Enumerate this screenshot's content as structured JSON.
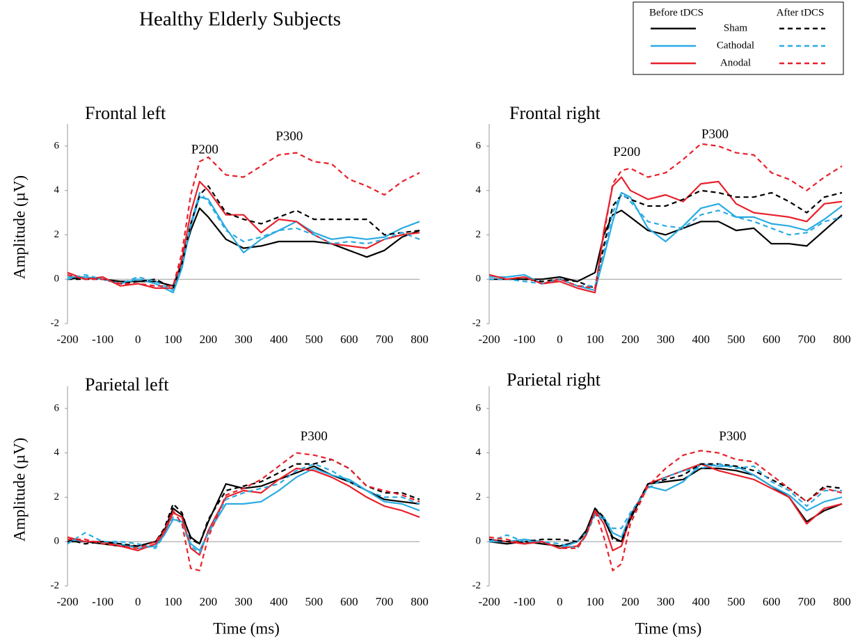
{
  "title": "Healthy Elderly Subjects",
  "chart_data": [
    {
      "type": "line",
      "title": "Frontal left",
      "ylabel": "Amplitude (µV)",
      "x": [
        -200,
        -150,
        -100,
        -50,
        0,
        50,
        100,
        125,
        150,
        175,
        200,
        250,
        300,
        350,
        400,
        450,
        500,
        550,
        600,
        650,
        700,
        750,
        800
      ],
      "xlim": [
        -200,
        800
      ],
      "ylim": [
        -2,
        7
      ],
      "xticks": [
        -200,
        -100,
        0,
        100,
        200,
        300,
        400,
        500,
        600,
        700,
        800
      ],
      "yticks": [
        -2,
        0,
        2,
        4,
        6
      ],
      "annotations": [
        {
          "text": "P200",
          "x": 190,
          "y": 5.8
        },
        {
          "text": "P300",
          "x": 430,
          "y": 6.4
        }
      ],
      "series": [
        {
          "name": "Sham",
          "phase": "Before tDCS",
          "color": "#000000",
          "dashed": false,
          "values": [
            0,
            0.1,
            0,
            -0.1,
            -0.1,
            -0.1,
            -0.3,
            0.8,
            2.2,
            3.2,
            2.8,
            1.8,
            1.4,
            1.5,
            1.7,
            1.7,
            1.7,
            1.6,
            1.3,
            1.0,
            1.3,
            1.9,
            2.2
          ]
        },
        {
          "name": "Cathodal",
          "phase": "Before tDCS",
          "color": "#29abe2",
          "dashed": false,
          "values": [
            0.1,
            0.1,
            0,
            -0.2,
            0,
            -0.2,
            -0.6,
            0.5,
            2.4,
            3.7,
            3.6,
            2.3,
            1.2,
            1.8,
            2.2,
            2.6,
            2.1,
            1.8,
            1.9,
            1.8,
            1.9,
            2.3,
            2.6
          ]
        },
        {
          "name": "Anodal",
          "phase": "Before tDCS",
          "color": "#e8202a",
          "dashed": false,
          "values": [
            0.3,
            0,
            0.1,
            -0.3,
            -0.2,
            -0.4,
            -0.4,
            0.9,
            3.0,
            4.4,
            4.0,
            2.9,
            2.9,
            2.1,
            2.7,
            2.6,
            2.0,
            1.6,
            1.5,
            1.4,
            1.8,
            2.0,
            2.1
          ]
        },
        {
          "name": "Sham",
          "phase": "After tDCS",
          "color": "#000000",
          "dashed": true,
          "values": [
            0,
            0,
            0,
            -0.2,
            -0.1,
            0,
            -0.4,
            0.7,
            2.5,
            3.8,
            4.2,
            3.0,
            2.7,
            2.5,
            2.8,
            3.1,
            2.7,
            2.7,
            2.7,
            2.7,
            2.0,
            2.1,
            2.2
          ]
        },
        {
          "name": "Cathodal",
          "phase": "After tDCS",
          "color": "#29abe2",
          "dashed": true,
          "values": [
            0,
            0.2,
            0,
            -0.2,
            0.1,
            -0.1,
            -0.5,
            0.6,
            2.5,
            3.9,
            3.5,
            2.2,
            1.7,
            1.9,
            2.2,
            2.3,
            2.0,
            1.6,
            1.7,
            1.6,
            1.8,
            2.1,
            1.8
          ]
        },
        {
          "name": "Anodal",
          "phase": "After tDCS",
          "color": "#e8202a",
          "dashed": true,
          "values": [
            0.2,
            0,
            0,
            -0.2,
            -0.2,
            -0.3,
            -0.3,
            1.2,
            3.8,
            5.3,
            5.5,
            4.7,
            4.6,
            5.1,
            5.6,
            5.7,
            5.3,
            5.2,
            4.5,
            4.2,
            3.8,
            4.4,
            4.8
          ]
        }
      ]
    },
    {
      "type": "line",
      "title": "Frontal right",
      "x": [
        -200,
        -150,
        -100,
        -50,
        0,
        50,
        100,
        125,
        150,
        175,
        200,
        250,
        300,
        350,
        400,
        450,
        500,
        550,
        600,
        650,
        700,
        750,
        800
      ],
      "xlim": [
        -200,
        800
      ],
      "ylim": [
        -2,
        7
      ],
      "xticks": [
        -200,
        -100,
        0,
        100,
        200,
        300,
        400,
        500,
        600,
        700,
        800
      ],
      "yticks": [
        -2,
        0,
        2,
        4,
        6
      ],
      "annotations": [
        {
          "text": "P200",
          "x": 190,
          "y": 5.7
        },
        {
          "text": "P300",
          "x": 440,
          "y": 6.5
        }
      ],
      "series": [
        {
          "name": "Sham",
          "phase": "Before tDCS",
          "color": "#000000",
          "dashed": false,
          "values": [
            0,
            0,
            0,
            0,
            0.1,
            -0.1,
            0.3,
            2.0,
            2.9,
            3.1,
            2.8,
            2.2,
            2.0,
            2.3,
            2.6,
            2.6,
            2.2,
            2.3,
            1.6,
            1.6,
            1.5,
            2.2,
            2.9
          ]
        },
        {
          "name": "Cathodal",
          "phase": "Before tDCS",
          "color": "#29abe2",
          "dashed": false,
          "values": [
            0.1,
            0.1,
            0.2,
            -0.2,
            0,
            -0.3,
            -0.5,
            1.0,
            2.6,
            3.9,
            3.7,
            2.3,
            1.7,
            2.4,
            3.2,
            3.4,
            2.8,
            2.8,
            2.5,
            2.4,
            2.2,
            2.7,
            3.3
          ]
        },
        {
          "name": "Anodal",
          "phase": "Before tDCS",
          "color": "#e8202a",
          "dashed": false,
          "values": [
            0.2,
            0,
            0.1,
            -0.2,
            -0.1,
            -0.4,
            -0.6,
            2.2,
            4.2,
            4.6,
            4.0,
            3.6,
            3.8,
            3.5,
            4.3,
            4.4,
            3.4,
            3.0,
            2.9,
            2.8,
            2.6,
            3.4,
            3.5
          ]
        },
        {
          "name": "Sham",
          "phase": "After tDCS",
          "color": "#000000",
          "dashed": true,
          "values": [
            0,
            0,
            0,
            -0.1,
            0,
            -0.1,
            -0.4,
            1.5,
            3.3,
            3.8,
            3.6,
            3.3,
            3.3,
            3.6,
            4.0,
            3.9,
            3.7,
            3.7,
            3.9,
            3.5,
            3.0,
            3.7,
            3.9
          ]
        },
        {
          "name": "Cathodal",
          "phase": "After tDCS",
          "color": "#29abe2",
          "dashed": true,
          "values": [
            0,
            0,
            -0.1,
            -0.2,
            0,
            -0.3,
            -0.3,
            1.2,
            3.0,
            3.9,
            3.5,
            2.6,
            2.4,
            2.3,
            2.9,
            3.1,
            2.8,
            2.6,
            2.3,
            2.0,
            2.1,
            2.6,
            2.8
          ]
        },
        {
          "name": "Anodal",
          "phase": "After tDCS",
          "color": "#e8202a",
          "dashed": true,
          "values": [
            0.2,
            0,
            0.1,
            -0.2,
            0,
            -0.3,
            -0.4,
            2.0,
            4.3,
            4.9,
            5.0,
            4.6,
            4.8,
            5.4,
            6.1,
            6.0,
            5.7,
            5.6,
            4.8,
            4.5,
            4.0,
            4.6,
            5.1
          ]
        }
      ]
    },
    {
      "type": "line",
      "title": "Parietal left",
      "ylabel": "Amplitude (µV)",
      "xlabel": "Time (ms)",
      "x": [
        -200,
        -150,
        -100,
        -50,
        0,
        50,
        75,
        100,
        125,
        150,
        175,
        200,
        250,
        300,
        350,
        400,
        450,
        500,
        550,
        600,
        650,
        700,
        750,
        800
      ],
      "xlim": [
        -200,
        800
      ],
      "ylim": [
        -2,
        7
      ],
      "xticks": [
        -200,
        -100,
        0,
        100,
        200,
        300,
        400,
        500,
        600,
        700,
        800
      ],
      "yticks": [
        -2,
        0,
        2,
        4,
        6
      ],
      "annotations": [
        {
          "text": "P300",
          "x": 500,
          "y": 4.7
        }
      ],
      "series": [
        {
          "name": "Sham",
          "phase": "Before tDCS",
          "color": "#000000",
          "dashed": false,
          "values": [
            0,
            0,
            -0.1,
            -0.2,
            -0.2,
            0,
            0.5,
            1.5,
            1.2,
            0.2,
            -0.1,
            0.9,
            2.6,
            2.4,
            2.5,
            2.8,
            3.1,
            3.4,
            3.0,
            2.7,
            2.3,
            1.9,
            1.8,
            1.7
          ]
        },
        {
          "name": "Cathodal",
          "phase": "Before tDCS",
          "color": "#29abe2",
          "dashed": false,
          "values": [
            0.1,
            0,
            0,
            -0.1,
            -0.3,
            -0.2,
            0.3,
            1.0,
            0.9,
            -0.1,
            -0.4,
            0.4,
            1.7,
            1.7,
            1.8,
            2.3,
            2.9,
            3.3,
            3.0,
            2.8,
            2.3,
            1.8,
            1.7,
            1.4
          ]
        },
        {
          "name": "Anodal",
          "phase": "Before tDCS",
          "color": "#e8202a",
          "dashed": false,
          "values": [
            0.2,
            0,
            0,
            -0.2,
            -0.4,
            -0.1,
            0.4,
            1.3,
            1.1,
            -0.3,
            -0.6,
            0.5,
            2.0,
            2.3,
            2.2,
            2.8,
            3.3,
            3.2,
            2.9,
            2.5,
            2.0,
            1.6,
            1.4,
            1.1
          ]
        },
        {
          "name": "Sham",
          "phase": "After tDCS",
          "color": "#000000",
          "dashed": true,
          "values": [
            0.1,
            -0.1,
            0,
            -0.1,
            -0.2,
            0,
            0.6,
            1.7,
            1.3,
            0.1,
            -0.1,
            1.0,
            2.3,
            2.5,
            2.7,
            3.1,
            3.5,
            3.5,
            3.7,
            3.3,
            2.5,
            2.2,
            2.2,
            1.9
          ]
        },
        {
          "name": "Cathodal",
          "phase": "After tDCS",
          "color": "#29abe2",
          "dashed": true,
          "values": [
            -0.1,
            0.4,
            0,
            0,
            -0.1,
            -0.3,
            0.3,
            1.1,
            0.8,
            -0.2,
            -0.5,
            0.4,
            1.9,
            2.2,
            2.4,
            2.6,
            3.2,
            3.5,
            3.2,
            2.7,
            2.3,
            2.0,
            2.0,
            1.7
          ]
        },
        {
          "name": "Anodal",
          "phase": "After tDCS",
          "color": "#e8202a",
          "dashed": true,
          "values": [
            0.1,
            0.1,
            -0.1,
            -0.2,
            -0.3,
            0,
            0.5,
            1.4,
            0.8,
            -1.2,
            -1.3,
            0.2,
            2.1,
            2.4,
            2.8,
            3.4,
            4.0,
            3.9,
            3.7,
            3.3,
            2.5,
            2.3,
            2.1,
            1.8
          ]
        }
      ]
    },
    {
      "type": "line",
      "title": "Parietal right",
      "xlabel": "Time (ms)",
      "x": [
        -200,
        -150,
        -100,
        -50,
        0,
        50,
        75,
        100,
        125,
        150,
        175,
        200,
        250,
        300,
        350,
        400,
        450,
        500,
        550,
        600,
        650,
        700,
        750,
        800
      ],
      "xlim": [
        -200,
        800
      ],
      "ylim": [
        -2,
        7
      ],
      "xticks": [
        -200,
        -100,
        0,
        100,
        200,
        300,
        400,
        500,
        600,
        700,
        800
      ],
      "yticks": [
        -2,
        0,
        2,
        4,
        6
      ],
      "annotations": [
        {
          "text": "P300",
          "x": 490,
          "y": 4.7
        }
      ],
      "series": [
        {
          "name": "Sham",
          "phase": "Before tDCS",
          "color": "#000000",
          "dashed": false,
          "values": [
            0,
            -0.1,
            0,
            -0.1,
            -0.2,
            0,
            0.5,
            1.5,
            1.0,
            0.2,
            0,
            1.0,
            2.6,
            2.7,
            2.8,
            3.3,
            3.3,
            3.2,
            3.0,
            2.5,
            2.0,
            0.9,
            1.4,
            1.7
          ]
        },
        {
          "name": "Cathodal",
          "phase": "Before tDCS",
          "color": "#29abe2",
          "dashed": false,
          "values": [
            0,
            0,
            0.1,
            0,
            -0.3,
            0,
            0.4,
            1.3,
            1.1,
            0.4,
            0.2,
            1.2,
            2.5,
            2.3,
            2.7,
            3.5,
            3.4,
            3.4,
            3.0,
            2.5,
            2.1,
            1.4,
            1.8,
            2.0
          ]
        },
        {
          "name": "Anodal",
          "phase": "Before tDCS",
          "color": "#e8202a",
          "dashed": false,
          "values": [
            0.1,
            0,
            -0.1,
            0,
            -0.3,
            -0.2,
            0.3,
            1.4,
            0.8,
            -0.4,
            -0.2,
            1.1,
            2.6,
            2.9,
            3.2,
            3.5,
            3.2,
            3.0,
            2.8,
            2.4,
            2.0,
            0.8,
            1.5,
            1.7
          ]
        },
        {
          "name": "Sham",
          "phase": "After tDCS",
          "color": "#000000",
          "dashed": true,
          "values": [
            0.1,
            0,
            0,
            0.1,
            0.1,
            0,
            0.4,
            1.5,
            1.1,
            0.1,
            0,
            1.1,
            2.6,
            2.8,
            3.0,
            3.5,
            3.5,
            3.4,
            3.2,
            2.8,
            2.4,
            1.8,
            2.5,
            2.4
          ]
        },
        {
          "name": "Cathodal",
          "phase": "After tDCS",
          "color": "#29abe2",
          "dashed": true,
          "values": [
            0,
            0.3,
            0,
            0,
            -0.1,
            -0.3,
            0.3,
            1.2,
            1.0,
            0.6,
            0.6,
            1.3,
            2.4,
            2.9,
            3.2,
            3.3,
            3.5,
            3.3,
            3.4,
            2.7,
            2.3,
            1.6,
            2.3,
            2.3
          ]
        },
        {
          "name": "Anodal",
          "phase": "After tDCS",
          "color": "#e8202a",
          "dashed": true,
          "values": [
            0.2,
            0.1,
            -0.1,
            0,
            -0.3,
            -0.3,
            0.3,
            1.4,
            0.2,
            -1.3,
            -1.0,
            0.8,
            2.5,
            3.3,
            3.9,
            4.1,
            4.0,
            3.7,
            3.6,
            3.0,
            2.4,
            1.8,
            2.4,
            2.2
          ]
        }
      ]
    }
  ]
}
